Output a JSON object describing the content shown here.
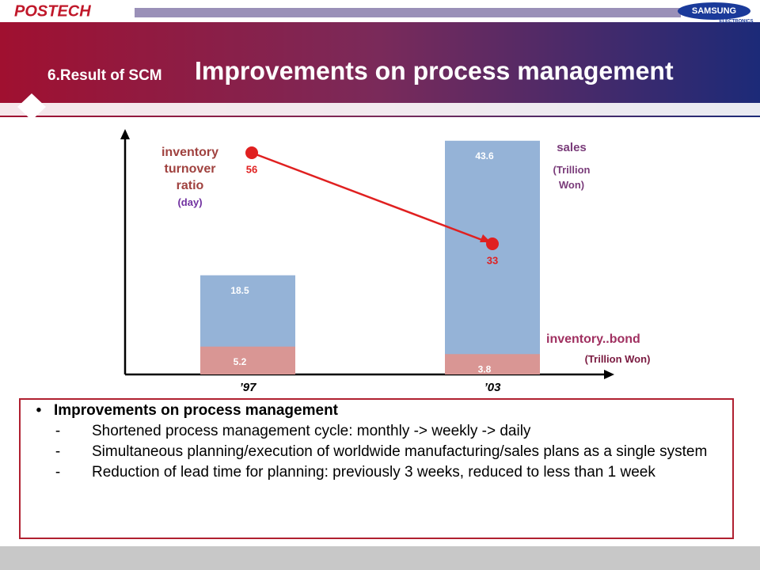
{
  "header": {
    "logo": "POSTECH",
    "brand": "SAMSUNG",
    "brand_sub": "ELECTRONICS",
    "title_prefix": "6.Result of SCM",
    "title_main": "Improvements on process management"
  },
  "chart_data": {
    "type": "bar",
    "categories": [
      "’97",
      "’03"
    ],
    "series": [
      {
        "name": "sales",
        "color": "#95b3d7",
        "values": [
          18.5,
          43.6
        ]
      },
      {
        "name": "inventory..bond",
        "color": "#d99694",
        "values": [
          5.2,
          3.8
        ]
      },
      {
        "name": "inventory turnover ratio",
        "color": "#e02020",
        "values": [
          56,
          33
        ],
        "axis": "y2",
        "type": "line"
      }
    ],
    "ylim": [
      0,
      44.6
    ],
    "y2lim": [
      0,
      60.4
    ],
    "annotations": [
      "(Trillion Won)",
      "(Trillion Won)",
      "(day)"
    ]
  },
  "body": {
    "heading": "Improvements on process management",
    "items": [
      "Shortened process management cycle: monthly -> weekly -> daily",
      "Simultaneous planning/execution of worldwide manufacturing/sales plans as a single system",
      "Reduction of lead time for planning: previously 3 weeks, reduced to less than 1 week"
    ]
  }
}
